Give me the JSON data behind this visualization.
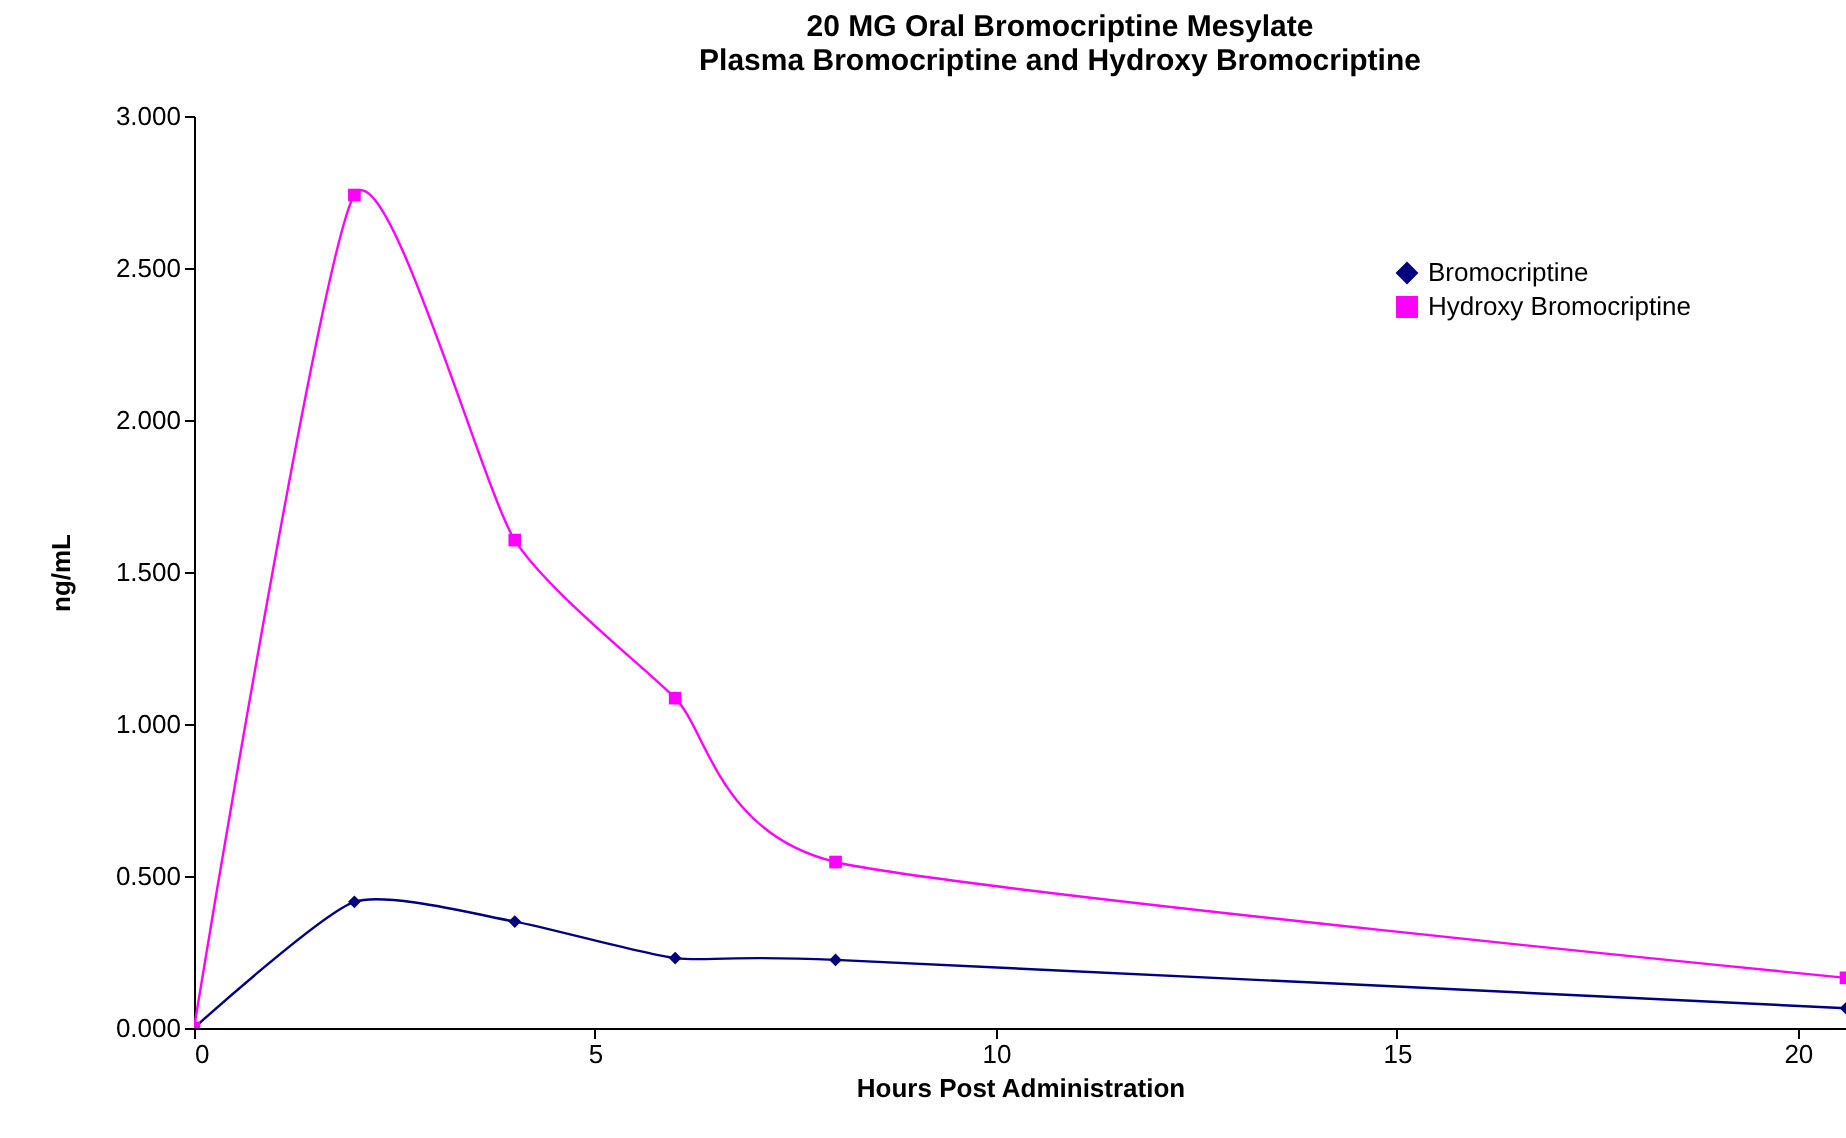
{
  "chart_data": {
    "type": "line",
    "title": "20 MG Oral Bromocriptine Mesylate",
    "subtitle": "Plasma Bromocriptine and Hydroxy Bromocriptine",
    "xlabel": "Hours Post Administration",
    "ylabel": "ng/mL",
    "x": [
      0,
      2,
      4,
      6,
      8,
      20.6
    ],
    "series": [
      {
        "name": "Bromocriptine",
        "color": "#000080",
        "marker": "diamond",
        "values": [
          0,
          0.415,
          0.35,
          0.23,
          0.224,
          0.065
        ]
      },
      {
        "name": "Hydroxy Bromocriptine",
        "color": "#ff00ff",
        "marker": "square",
        "values": [
          0,
          2.74,
          1.605,
          1.085,
          0.546,
          0.165
        ]
      }
    ],
    "xlim": [
      0,
      20.6
    ],
    "xticks": [
      0,
      5,
      10,
      15,
      20
    ],
    "ylim": [
      0,
      3
    ],
    "yticks": [
      {
        "value": 0,
        "label": "0.000"
      },
      {
        "value": 0.5,
        "label": "0.500"
      },
      {
        "value": 1,
        "label": "1.000"
      },
      {
        "value": 1.5,
        "label": "1.500"
      },
      {
        "value": 2,
        "label": "2.000"
      },
      {
        "value": 2.5,
        "label": "2.500"
      },
      {
        "value": 3,
        "label": "3.000"
      }
    ],
    "grid": false,
    "legend": "top right",
    "line_style": "solid"
  }
}
